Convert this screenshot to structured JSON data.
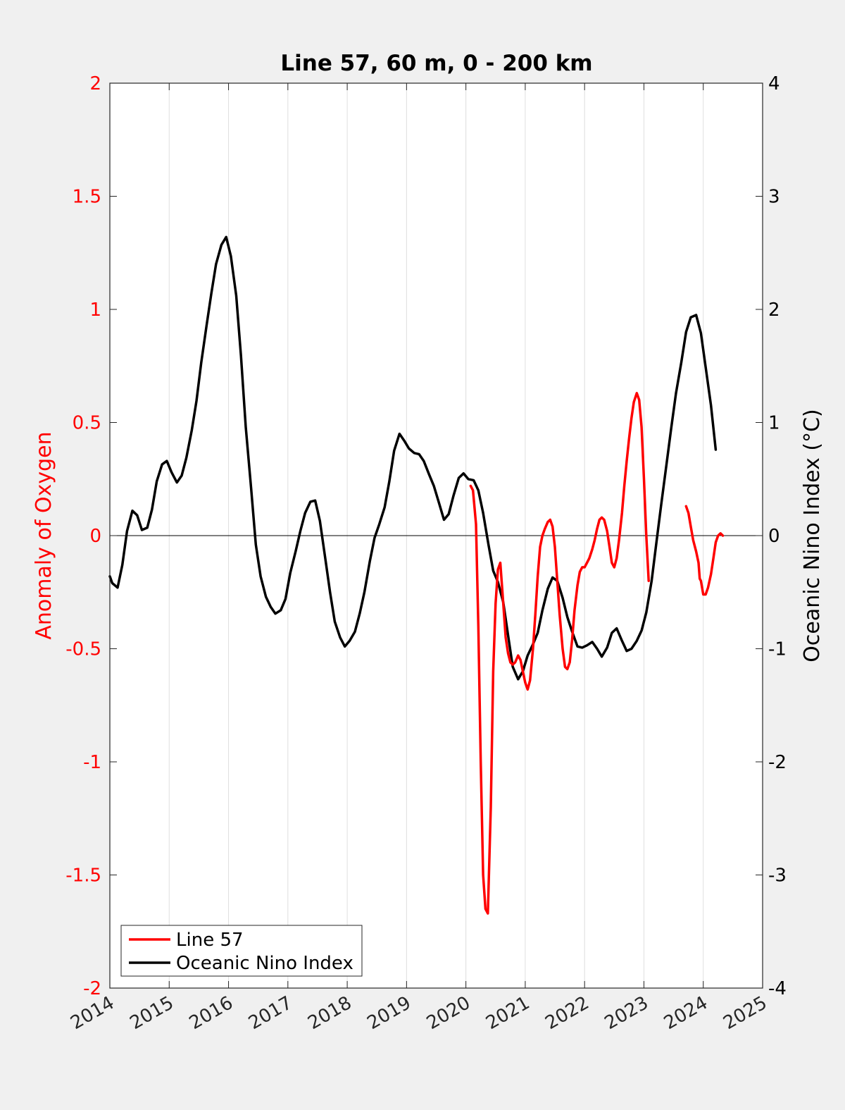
{
  "chart_data": {
    "type": "line",
    "title": "Line 57, 60 m, 0 - 200 km",
    "ylabel_left": "Anomaly of Oxygen",
    "ylabel_right": "Oceanic Nino Index (°C)",
    "xlim": [
      2014,
      2025
    ],
    "ylim_left": [
      -2,
      2
    ],
    "ylim_right": [
      -4,
      4
    ],
    "x_ticks": [
      "2014",
      "2015",
      "2016",
      "2017",
      "2018",
      "2019",
      "2020",
      "2021",
      "2022",
      "2023",
      "2024",
      "2025"
    ],
    "y_left_ticks": [
      "2",
      "1.5",
      "1",
      "0.5",
      "0",
      "-0.5",
      "-1",
      "-1.5",
      "-2"
    ],
    "y_right_ticks": [
      "4",
      "3",
      "2",
      "1",
      "0",
      "-1",
      "-2",
      "-3",
      "-4"
    ],
    "grid": "vertical",
    "legend_placement": "bottom-left",
    "colors": {
      "line57": "#ff0000",
      "oni": "#000000",
      "left_axis": "#ff0000",
      "background": "#f0f0f0",
      "grid": "#dedede"
    },
    "series": [
      {
        "name": "Line 57",
        "axis": "left",
        "color": "#ff0000",
        "segments": [
          [
            [
              2020.08,
              0.22
            ],
            [
              2020.12,
              0.2
            ],
            [
              2020.17,
              0.05
            ],
            [
              2020.21,
              -0.4
            ],
            [
              2020.25,
              -1.0
            ],
            [
              2020.29,
              -1.5
            ],
            [
              2020.33,
              -1.65
            ],
            [
              2020.37,
              -1.67
            ],
            [
              2020.42,
              -1.2
            ],
            [
              2020.46,
              -0.6
            ],
            [
              2020.5,
              -0.3
            ],
            [
              2020.54,
              -0.15
            ],
            [
              2020.58,
              -0.12
            ],
            [
              2020.63,
              -0.3
            ],
            [
              2020.67,
              -0.45
            ],
            [
              2020.71,
              -0.52
            ],
            [
              2020.75,
              -0.56
            ],
            [
              2020.79,
              -0.57
            ],
            [
              2020.83,
              -0.56
            ],
            [
              2020.88,
              -0.53
            ],
            [
              2020.92,
              -0.55
            ],
            [
              2020.96,
              -0.6
            ],
            [
              2021.0,
              -0.65
            ],
            [
              2021.04,
              -0.68
            ],
            [
              2021.08,
              -0.64
            ],
            [
              2021.13,
              -0.5
            ],
            [
              2021.17,
              -0.35
            ],
            [
              2021.21,
              -0.18
            ],
            [
              2021.25,
              -0.05
            ],
            [
              2021.29,
              0.0
            ],
            [
              2021.33,
              0.03
            ],
            [
              2021.38,
              0.06
            ],
            [
              2021.42,
              0.07
            ],
            [
              2021.46,
              0.04
            ],
            [
              2021.5,
              -0.05
            ],
            [
              2021.54,
              -0.2
            ],
            [
              2021.58,
              -0.35
            ],
            [
              2021.63,
              -0.5
            ],
            [
              2021.67,
              -0.58
            ],
            [
              2021.71,
              -0.59
            ],
            [
              2021.75,
              -0.56
            ],
            [
              2021.79,
              -0.46
            ],
            [
              2021.83,
              -0.33
            ],
            [
              2021.88,
              -0.22
            ],
            [
              2021.92,
              -0.16
            ],
            [
              2021.96,
              -0.14
            ],
            [
              2022.0,
              -0.14
            ],
            [
              2022.04,
              -0.12
            ],
            [
              2022.08,
              -0.1
            ],
            [
              2022.13,
              -0.06
            ],
            [
              2022.17,
              -0.02
            ],
            [
              2022.21,
              0.03
            ],
            [
              2022.25,
              0.07
            ],
            [
              2022.29,
              0.08
            ],
            [
              2022.33,
              0.07
            ],
            [
              2022.38,
              0.02
            ],
            [
              2022.42,
              -0.05
            ],
            [
              2022.46,
              -0.12
            ],
            [
              2022.5,
              -0.14
            ],
            [
              2022.54,
              -0.1
            ],
            [
              2022.58,
              -0.02
            ],
            [
              2022.63,
              0.1
            ],
            [
              2022.67,
              0.22
            ],
            [
              2022.71,
              0.33
            ],
            [
              2022.75,
              0.43
            ],
            [
              2022.79,
              0.52
            ],
            [
              2022.83,
              0.59
            ],
            [
              2022.88,
              0.63
            ],
            [
              2022.92,
              0.6
            ],
            [
              2022.96,
              0.48
            ],
            [
              2023.0,
              0.25
            ],
            [
              2023.04,
              0.0
            ],
            [
              2023.08,
              -0.2
            ]
          ],
          [
            [
              2023.71,
              0.13
            ],
            [
              2023.75,
              0.1
            ],
            [
              2023.79,
              0.04
            ],
            [
              2023.83,
              -0.02
            ],
            [
              2023.88,
              -0.07
            ],
            [
              2023.92,
              -0.12
            ],
            [
              2023.94,
              -0.19
            ],
            [
              2023.96,
              -0.2
            ],
            [
              2024.0,
              -0.26
            ],
            [
              2024.04,
              -0.26
            ],
            [
              2024.08,
              -0.23
            ],
            [
              2024.13,
              -0.17
            ],
            [
              2024.17,
              -0.1
            ],
            [
              2024.21,
              -0.03
            ],
            [
              2024.25,
              0.0
            ],
            [
              2024.29,
              0.01
            ],
            [
              2024.33,
              0.0
            ]
          ]
        ]
      },
      {
        "name": "Oceanic Nino Index",
        "axis": "right",
        "color": "#000000",
        "segments": [
          [
            [
              2014.0,
              -0.36
            ],
            [
              2014.04,
              -0.42
            ],
            [
              2014.13,
              -0.46
            ],
            [
              2014.21,
              -0.26
            ],
            [
              2014.29,
              0.04
            ],
            [
              2014.38,
              0.22
            ],
            [
              2014.46,
              0.18
            ],
            [
              2014.54,
              0.05
            ],
            [
              2014.63,
              0.07
            ],
            [
              2014.71,
              0.23
            ],
            [
              2014.79,
              0.48
            ],
            [
              2014.88,
              0.63
            ],
            [
              2014.96,
              0.66
            ],
            [
              2015.04,
              0.56
            ],
            [
              2015.13,
              0.47
            ],
            [
              2015.21,
              0.53
            ],
            [
              2015.29,
              0.69
            ],
            [
              2015.38,
              0.93
            ],
            [
              2015.46,
              1.19
            ],
            [
              2015.54,
              1.53
            ],
            [
              2015.63,
              1.86
            ],
            [
              2015.71,
              2.14
            ],
            [
              2015.79,
              2.4
            ],
            [
              2015.88,
              2.57
            ],
            [
              2015.96,
              2.64
            ],
            [
              2016.04,
              2.47
            ],
            [
              2016.13,
              2.12
            ],
            [
              2016.21,
              1.59
            ],
            [
              2016.29,
              0.96
            ],
            [
              2016.38,
              0.42
            ],
            [
              2016.46,
              -0.08
            ],
            [
              2016.54,
              -0.36
            ],
            [
              2016.63,
              -0.54
            ],
            [
              2016.71,
              -0.63
            ],
            [
              2016.79,
              -0.69
            ],
            [
              2016.88,
              -0.66
            ],
            [
              2016.96,
              -0.56
            ],
            [
              2017.04,
              -0.33
            ],
            [
              2017.13,
              -0.14
            ],
            [
              2017.21,
              0.04
            ],
            [
              2017.29,
              0.2
            ],
            [
              2017.38,
              0.3
            ],
            [
              2017.46,
              0.31
            ],
            [
              2017.54,
              0.13
            ],
            [
              2017.63,
              -0.2
            ],
            [
              2017.71,
              -0.5
            ],
            [
              2017.79,
              -0.76
            ],
            [
              2017.88,
              -0.9
            ],
            [
              2017.96,
              -0.98
            ],
            [
              2018.04,
              -0.93
            ],
            [
              2018.13,
              -0.85
            ],
            [
              2018.21,
              -0.69
            ],
            [
              2018.29,
              -0.5
            ],
            [
              2018.38,
              -0.23
            ],
            [
              2018.46,
              -0.02
            ],
            [
              2018.54,
              0.1
            ],
            [
              2018.63,
              0.25
            ],
            [
              2018.71,
              0.48
            ],
            [
              2018.79,
              0.75
            ],
            [
              2018.88,
              0.9
            ],
            [
              2018.96,
              0.84
            ],
            [
              2019.04,
              0.77
            ],
            [
              2019.13,
              0.73
            ],
            [
              2019.21,
              0.72
            ],
            [
              2019.29,
              0.66
            ],
            [
              2019.38,
              0.54
            ],
            [
              2019.46,
              0.44
            ],
            [
              2019.54,
              0.3
            ],
            [
              2019.63,
              0.14
            ],
            [
              2019.71,
              0.19
            ],
            [
              2019.79,
              0.35
            ],
            [
              2019.88,
              0.51
            ],
            [
              2019.96,
              0.55
            ],
            [
              2020.04,
              0.5
            ],
            [
              2020.13,
              0.49
            ],
            [
              2020.21,
              0.4
            ],
            [
              2020.29,
              0.2
            ],
            [
              2020.38,
              -0.08
            ],
            [
              2020.46,
              -0.31
            ],
            [
              2020.54,
              -0.41
            ],
            [
              2020.63,
              -0.59
            ],
            [
              2020.71,
              -0.88
            ],
            [
              2020.79,
              -1.16
            ],
            [
              2020.88,
              -1.27
            ],
            [
              2020.96,
              -1.2
            ],
            [
              2021.04,
              -1.06
            ],
            [
              2021.13,
              -0.96
            ],
            [
              2021.21,
              -0.86
            ],
            [
              2021.29,
              -0.66
            ],
            [
              2021.38,
              -0.47
            ],
            [
              2021.46,
              -0.37
            ],
            [
              2021.54,
              -0.4
            ],
            [
              2021.63,
              -0.55
            ],
            [
              2021.71,
              -0.72
            ],
            [
              2021.79,
              -0.85
            ],
            [
              2021.88,
              -0.98
            ],
            [
              2021.96,
              -0.99
            ],
            [
              2022.04,
              -0.97
            ],
            [
              2022.13,
              -0.94
            ],
            [
              2022.21,
              -1.0
            ],
            [
              2022.29,
              -1.07
            ],
            [
              2022.38,
              -0.99
            ],
            [
              2022.46,
              -0.86
            ],
            [
              2022.54,
              -0.82
            ],
            [
              2022.63,
              -0.93
            ],
            [
              2022.71,
              -1.02
            ],
            [
              2022.79,
              -1.0
            ],
            [
              2022.88,
              -0.93
            ],
            [
              2022.96,
              -0.84
            ],
            [
              2023.04,
              -0.68
            ],
            [
              2023.13,
              -0.4
            ],
            [
              2023.21,
              -0.06
            ],
            [
              2023.29,
              0.27
            ],
            [
              2023.38,
              0.63
            ],
            [
              2023.46,
              0.95
            ],
            [
              2023.54,
              1.26
            ],
            [
              2023.63,
              1.53
            ],
            [
              2023.71,
              1.8
            ],
            [
              2023.79,
              1.93
            ],
            [
              2023.88,
              1.95
            ],
            [
              2023.96,
              1.79
            ],
            [
              2024.04,
              1.49
            ],
            [
              2024.13,
              1.15
            ],
            [
              2024.21,
              0.76
            ]
          ]
        ]
      }
    ]
  }
}
